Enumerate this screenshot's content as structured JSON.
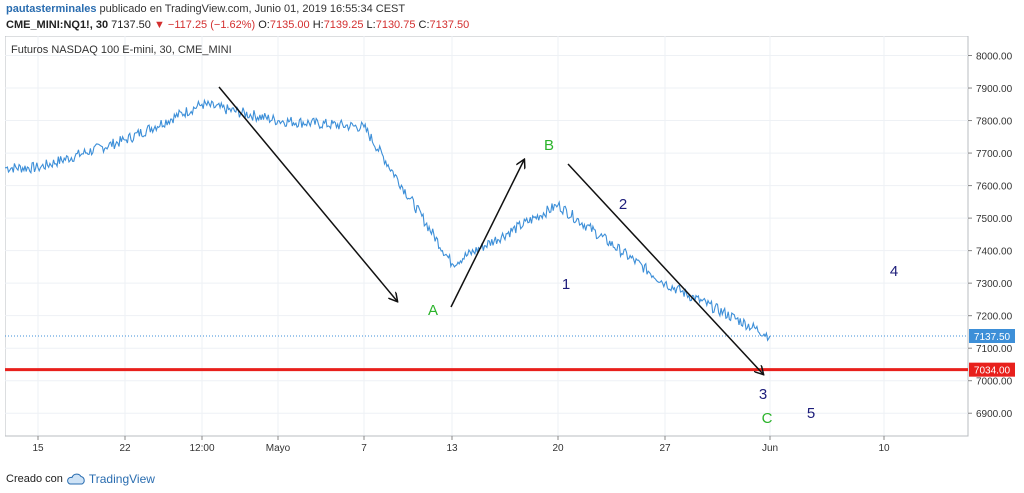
{
  "header": {
    "author": "pautasterminales",
    "published": "publicado en TradingView.com, Junio 01, 2019 16:55:34 CEST"
  },
  "ohlc": {
    "symbol": "CME_MINI:NQ1!, 30",
    "last": "7137.50",
    "arrow": "▼",
    "change": "−117.25 (−1.62%)",
    "o_label": "O:",
    "o": "7135.00",
    "h_label": "H:",
    "h": "7139.25",
    "l_label": "L:",
    "l": "7130.75",
    "c_label": "C:",
    "c": "7137.50"
  },
  "footer": {
    "text": "Creado con",
    "brand": "TradingView",
    "logo_icon": "tradingview-cloud-icon"
  },
  "colors": {
    "price": "#3d8fd8",
    "arrow": "#111111",
    "support": "#e8201c",
    "green_label": "#2ab32a",
    "navy_label": "#1c1c7a",
    "grid": "#eef1f5",
    "last_price_tag": "#3d8fd8"
  },
  "chart_data": {
    "type": "line",
    "title": "Futuros NASDAQ 100 E-mini, 30, CME_MINI",
    "xlabel": "",
    "ylabel": "",
    "ylim": [
      6830,
      8060
    ],
    "grid": true,
    "x_ticks": [
      "15",
      "22",
      "12:00",
      "Mayo",
      "7",
      "13",
      "20",
      "27",
      "Jun",
      "10"
    ],
    "y_ticks": [
      "8000.00",
      "7900.00",
      "7800.00",
      "7700.00",
      "7600.00",
      "7500.00",
      "7400.00",
      "7300.00",
      "7200.00",
      "7100.00",
      "7000.00",
      "6900.00"
    ],
    "series": [
      {
        "x": [
          "15",
          "22",
          "12:00",
          "Mayo",
          "7",
          "13",
          "20",
          "27",
          "Jun"
        ],
        "values": [
          7655,
          7740,
          7850,
          7800,
          7780,
          7360,
          7540,
          7300,
          7137.5
        ]
      }
    ],
    "price_lines": [
      {
        "value": 7137.5,
        "label": "7137.50",
        "style": "dotted"
      },
      {
        "value": 7034.0,
        "label": "7034.00",
        "style": "solid"
      }
    ],
    "annotations": [
      {
        "text": "A",
        "color": "green",
        "x": "12",
        "y": 7250
      },
      {
        "text": "B",
        "color": "green",
        "x": "19.7",
        "y": 7710
      },
      {
        "text": "C",
        "color": "green",
        "x": "Jun",
        "y": 6900
      },
      {
        "text": "1",
        "color": "navy",
        "x": "20",
        "y": 7320
      },
      {
        "text": "2",
        "color": "navy",
        "x": "29",
        "y": 7550
      },
      {
        "text": "3",
        "color": "navy",
        "x": "Jun",
        "y": 6970
      },
      {
        "text": "4",
        "color": "navy",
        "x": "10.4",
        "y": 7360
      },
      {
        "text": "5",
        "color": "navy",
        "x": "Jun+3",
        "y": 6910
      }
    ]
  }
}
